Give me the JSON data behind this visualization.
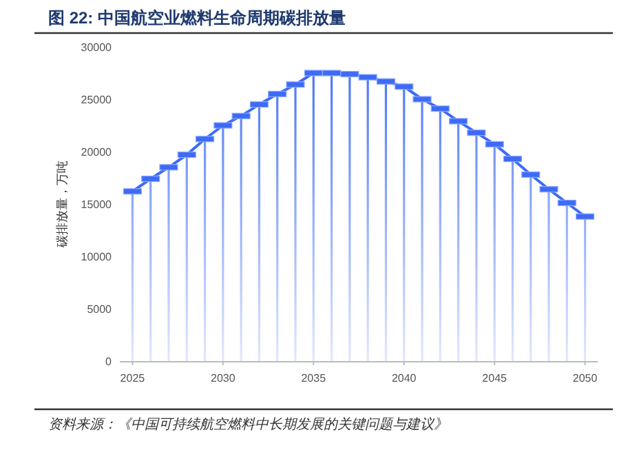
{
  "chart_data": {
    "type": "bar",
    "title": "图 22:  中国航空业燃料生命周期碳排放量",
    "ylabel": "碳排放量，万吨",
    "x": [
      2025,
      2026,
      2027,
      2028,
      2029,
      2030,
      2031,
      2032,
      2033,
      2034,
      2035,
      2036,
      2037,
      2038,
      2039,
      2040,
      2041,
      2042,
      2043,
      2044,
      2045,
      2046,
      2047,
      2048,
      2049,
      2050
    ],
    "series": [
      {
        "color": "#3d6bf5",
        "values": [
          16200,
          17400,
          18500,
          19700,
          21200,
          22500,
          23400,
          24500,
          25500,
          26400,
          27500,
          27500,
          27400,
          27100,
          26700,
          26200,
          25000,
          24100,
          22900,
          21800,
          20700,
          19300,
          17800,
          16400,
          15100,
          13800
        ]
      },
      {
        "type": "line",
        "color": "#3d6bf5",
        "marker": "square",
        "values": [
          16200,
          17400,
          18500,
          19700,
          21200,
          22500,
          23400,
          24500,
          25500,
          26400,
          27500,
          27500,
          27400,
          27100,
          26700,
          26200,
          25000,
          24100,
          22900,
          21800,
          20700,
          19300,
          17800,
          16400,
          15100,
          13800
        ]
      }
    ],
    "xlim": [
      2024.3,
      2050.7
    ],
    "xticks": [
      2025,
      2030,
      2035,
      2040,
      2045,
      2050
    ],
    "ylim": [
      0,
      30000
    ],
    "yticks": [
      0,
      5000,
      10000,
      15000,
      20000,
      25000,
      30000
    ],
    "grid": false,
    "annotations": [
      "资料来源：《中国可持续航空燃料中长期发展的关键问题与建议》"
    ]
  }
}
